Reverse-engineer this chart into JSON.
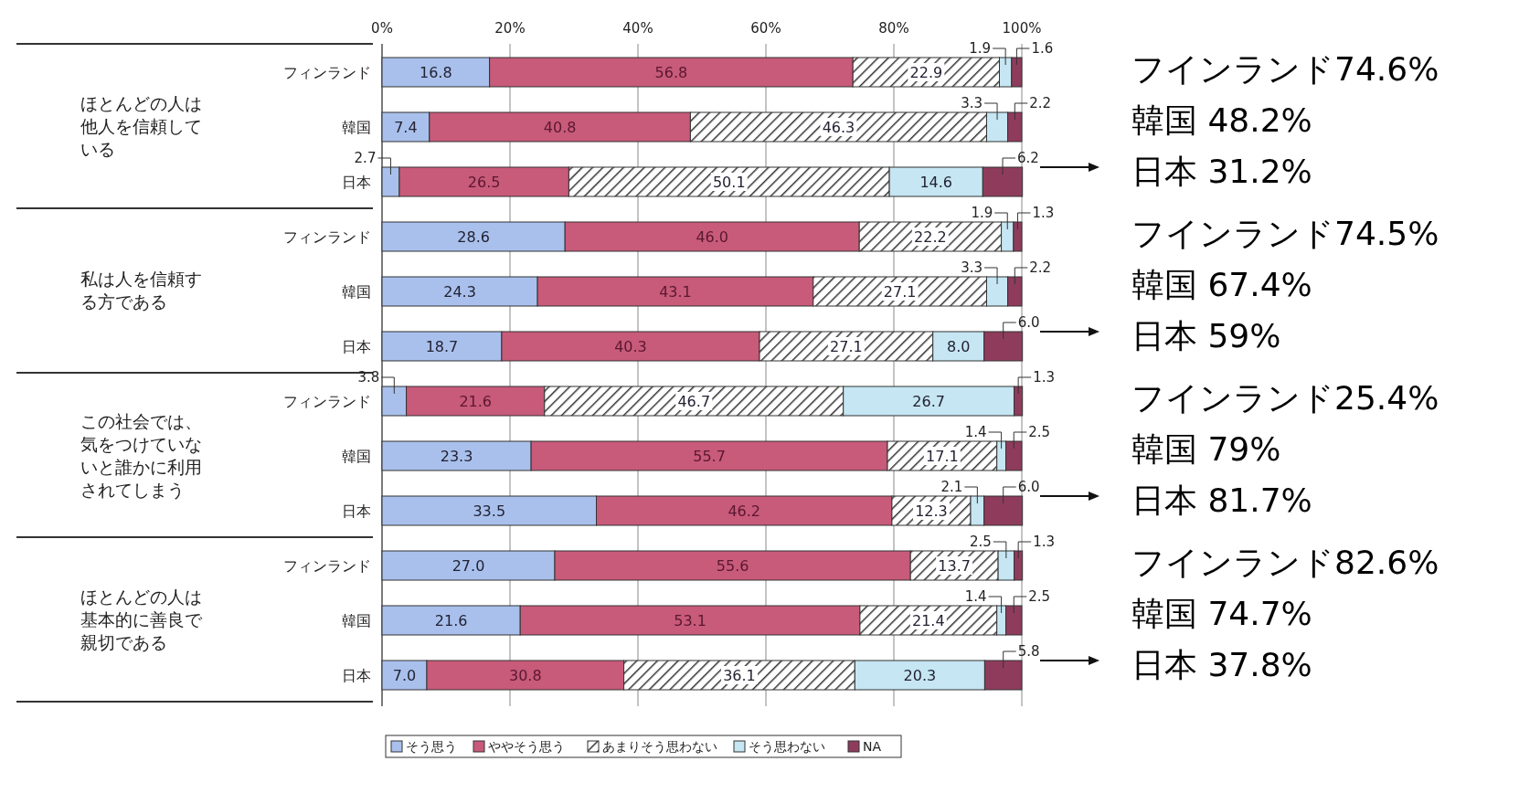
{
  "chart_data": {
    "type": "bar",
    "orientation": "horizontal",
    "stacked": true,
    "grid": "x",
    "legend": "bottom",
    "categories": [
      "フィンランド",
      "韓国",
      "日本",
      "フィンランド",
      "韓国",
      "日本",
      "フィンランド",
      "韓国",
      "日本",
      "フィンランド",
      "韓国",
      "日本"
    ],
    "xlim": [
      0,
      100
    ],
    "xticks": [
      {
        "value": 0,
        "label": "0%"
      },
      {
        "value": 20,
        "label": "20%"
      },
      {
        "value": 40,
        "label": "40%"
      },
      {
        "value": 60,
        "label": "60%"
      },
      {
        "value": 80,
        "label": "80%"
      },
      {
        "value": 100,
        "label": "100%"
      }
    ],
    "series": [
      {
        "name": "そう思う",
        "color": "#a9c0ec",
        "values": [
          16.8,
          7.4,
          2.7,
          28.6,
          24.3,
          18.7,
          3.8,
          23.3,
          33.5,
          27.0,
          21.6,
          7.0
        ],
        "value_labels": [
          "16.8",
          "7.4",
          "2.7",
          "28.6",
          "24.3",
          "18.7",
          "3.8",
          "23.3",
          "33.5",
          "27.0",
          "21.6",
          "7.0"
        ]
      },
      {
        "name": "ややそう思う",
        "color": "#c85a7a",
        "values": [
          56.8,
          40.8,
          26.5,
          46.0,
          43.1,
          40.3,
          21.6,
          55.7,
          46.2,
          55.6,
          53.1,
          30.8
        ],
        "value_labels": [
          "56.8",
          "40.8",
          "26.5",
          "46.0",
          "43.1",
          "40.3",
          "21.6",
          "55.7",
          "46.2",
          "55.6",
          "53.1",
          "30.8"
        ]
      },
      {
        "name": "あまりそう思わない",
        "color": "#333333",
        "values": [
          22.9,
          46.3,
          50.1,
          22.2,
          27.1,
          27.1,
          46.7,
          17.1,
          12.3,
          13.7,
          21.4,
          36.1
        ],
        "value_labels": [
          "22.9",
          "46.3",
          "50.1",
          "22.2",
          "27.1",
          "27.1",
          "46.7",
          "17.1",
          "12.3",
          "13.7",
          "21.4",
          "36.1"
        ]
      },
      {
        "name": "そう思わない",
        "color": "#c5e6f2",
        "values": [
          1.9,
          3.3,
          14.6,
          1.9,
          3.3,
          8.0,
          26.7,
          1.4,
          2.1,
          2.5,
          1.4,
          20.3
        ],
        "value_labels": [
          "1.9",
          "3.3",
          "14.6",
          "1.9",
          "3.3",
          "8.0",
          "26.7",
          "1.4",
          "2.1",
          "2.5",
          "1.4",
          "20.3"
        ]
      },
      {
        "name": "NA",
        "color": "#8f3c5c",
        "values": [
          1.6,
          2.2,
          6.2,
          1.3,
          2.2,
          6.0,
          1.3,
          2.5,
          6.0,
          1.3,
          2.5,
          5.8
        ],
        "value_labels": [
          "1.6",
          "2.2",
          "6.2",
          "1.3",
          "2.2",
          "6.0",
          "1.3",
          "2.5",
          "6.0",
          "1.3",
          "2.5",
          "5.8"
        ]
      }
    ],
    "annotations": [
      "ほとんどの人は他人を信頼している",
      "私は人を信頼する方である",
      "この社会では、気をつけていないと誰かに利用されてしまう",
      "ほとんどの人は基本的に善良で親切である",
      "フインランド74.6%",
      "韓国 48.2%",
      "日本 31.2%",
      "フインランド74.5%",
      "韓国 67.4%",
      "日本 59%",
      "フインランド25.4%",
      "韓国 79%",
      "日本 81.7%",
      "フインランド82.6%",
      "韓国 74.7%",
      "日本 37.8%"
    ]
  }
}
